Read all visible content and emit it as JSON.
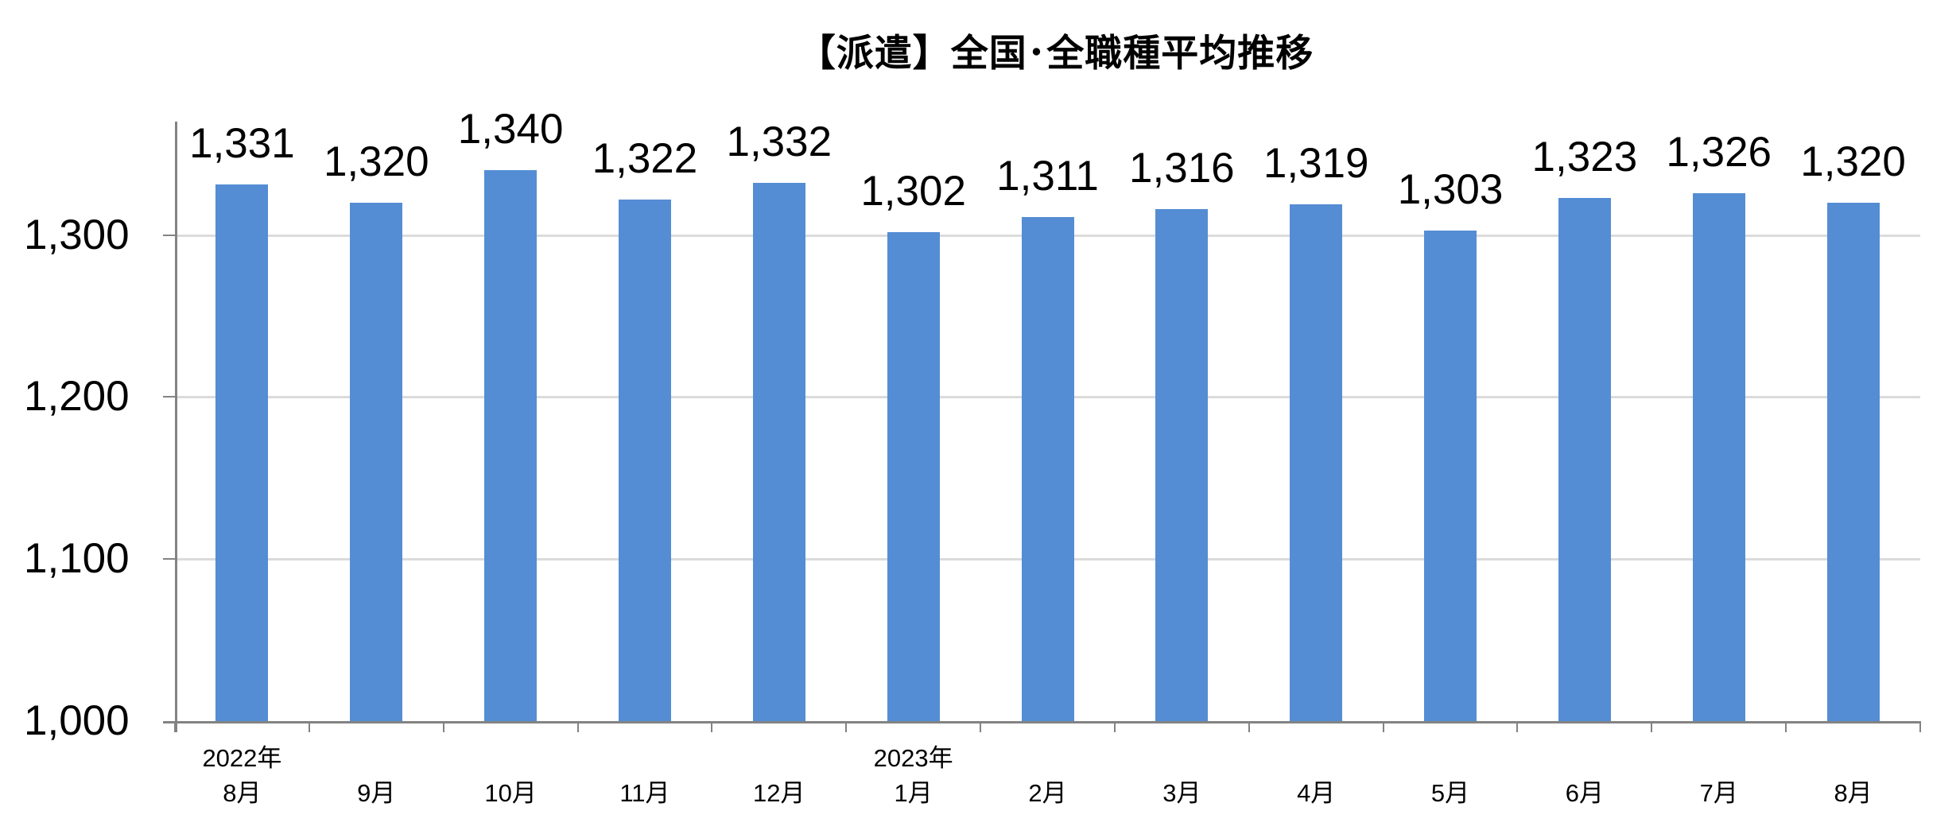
{
  "title": "【派遣】全国･全職種平均推移",
  "chart_data": {
    "type": "bar",
    "title": "【派遣】全国･全職種平均推移",
    "xlabel": "",
    "ylabel": "",
    "categories": [
      "8月",
      "9月",
      "10月",
      "11月",
      "12月",
      "1月",
      "2月",
      "3月",
      "4月",
      "5月",
      "6月",
      "7月",
      "8月"
    ],
    "year_labels": [
      {
        "text": "2022年",
        "category_index": 0
      },
      {
        "text": "2023年",
        "category_index": 5
      }
    ],
    "values": [
      1331,
      1320,
      1340,
      1322,
      1332,
      1302,
      1311,
      1316,
      1319,
      1303,
      1323,
      1326,
      1320
    ],
    "value_labels": [
      "1,331",
      "1,320",
      "1,340",
      "1,322",
      "1,332",
      "1,302",
      "1,311",
      "1,316",
      "1,319",
      "1,303",
      "1,323",
      "1,326",
      "1,320"
    ],
    "yticks": [
      1000,
      1100,
      1200,
      1300
    ],
    "ytick_labels": [
      "1,000",
      "1,100",
      "1,200",
      "1,300"
    ],
    "ylim": [
      1000,
      1370
    ],
    "grid": true,
    "legend": "none",
    "colors": {
      "bar": "#548DD4",
      "gridline": "#DBDBDB",
      "axis": "#838383",
      "text": "#000000",
      "background": "#FFFFFF"
    }
  }
}
